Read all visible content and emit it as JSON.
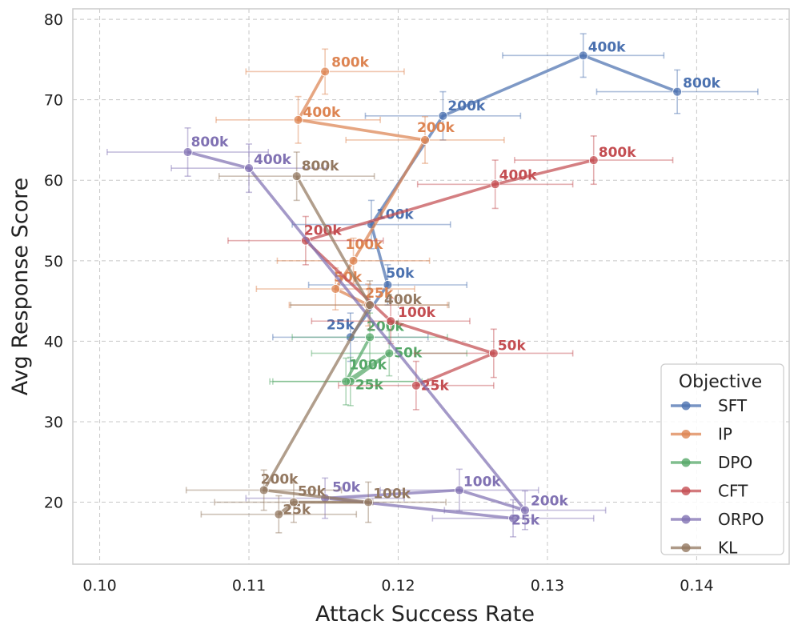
{
  "chart_data": {
    "type": "scatter",
    "xlabel": "Attack Success Rate",
    "ylabel": "Avg Response Score",
    "xlim": [
      0.0982,
      0.1462
    ],
    "ylim": [
      12.3,
      81.3
    ],
    "xticks": [
      0.1,
      0.11,
      0.12,
      0.13,
      0.14
    ],
    "xtick_labels": [
      "0.10",
      "0.11",
      "0.12",
      "0.13",
      "0.14"
    ],
    "yticks": [
      20,
      30,
      40,
      50,
      60,
      70,
      80
    ],
    "ytick_labels": [
      "20",
      "30",
      "40",
      "50",
      "60",
      "70",
      "80"
    ],
    "grid": true,
    "legend": {
      "title": "Objective",
      "placement": "lower-right"
    },
    "series": [
      {
        "name": "SFT",
        "color": "#4c72b0",
        "points": [
          {
            "label": "25k",
            "x": 0.1168,
            "y": 40.5,
            "xerr": 0.0052,
            "yerr": 3.0
          },
          {
            "label": "50k",
            "x": 0.1193,
            "y": 47.0,
            "xerr": 0.0053,
            "yerr": 2.5
          },
          {
            "label": "100k",
            "x": 0.1182,
            "y": 54.5,
            "xerr": 0.0053,
            "yerr": 3.0
          },
          {
            "label": "200k",
            "x": 0.123,
            "y": 68.0,
            "xerr": 0.0052,
            "yerr": 3.0
          },
          {
            "label": "400k",
            "x": 0.1324,
            "y": 75.5,
            "xerr": 0.0054,
            "yerr": 2.7
          },
          {
            "label": "800k",
            "x": 0.1387,
            "y": 71.0,
            "xerr": 0.0054,
            "yerr": 2.7
          }
        ]
      },
      {
        "name": "IP",
        "color": "#dd8452",
        "points": [
          {
            "label": "25k",
            "x": 0.118,
            "y": 44.5,
            "xerr": 0.0053,
            "yerr": 2.6
          },
          {
            "label": "50k",
            "x": 0.1158,
            "y": 46.5,
            "xerr": 0.0053,
            "yerr": 2.6
          },
          {
            "label": "100k",
            "x": 0.117,
            "y": 50.0,
            "xerr": 0.0051,
            "yerr": 2.8
          },
          {
            "label": "200k",
            "x": 0.1218,
            "y": 65.0,
            "xerr": 0.0053,
            "yerr": 2.9
          },
          {
            "label": "400k",
            "x": 0.1133,
            "y": 67.5,
            "xerr": 0.0055,
            "yerr": 2.9
          },
          {
            "label": "800k",
            "x": 0.1151,
            "y": 73.5,
            "xerr": 0.0053,
            "yerr": 2.8
          }
        ]
      },
      {
        "name": "DPO",
        "color": "#55a868",
        "points": [
          {
            "label": "25k",
            "x": 0.1168,
            "y": 35.0,
            "xerr": 0.0052,
            "yerr": 3.0
          },
          {
            "label": "50k",
            "x": 0.1194,
            "y": 38.5,
            "xerr": 0.0052,
            "yerr": 2.8
          },
          {
            "label": "100k",
            "x": 0.1165,
            "y": 35.0,
            "xerr": 0.0051,
            "yerr": 2.9
          },
          {
            "label": "200k",
            "x": 0.1181,
            "y": 40.5,
            "xerr": 0.0052,
            "yerr": 3.0
          }
        ]
      },
      {
        "name": "CFT",
        "color": "#c44e52",
        "points": [
          {
            "label": "25k",
            "x": 0.1212,
            "y": 34.5,
            "xerr": 0.0052,
            "yerr": 3.0
          },
          {
            "label": "50k",
            "x": 0.1264,
            "y": 38.5,
            "xerr": 0.0053,
            "yerr": 3.0
          },
          {
            "label": "100k",
            "x": 0.1195,
            "y": 42.5,
            "xerr": 0.0053,
            "yerr": 2.8
          },
          {
            "label": "200k",
            "x": 0.1138,
            "y": 52.5,
            "xerr": 0.0052,
            "yerr": 3.0
          },
          {
            "label": "400k",
            "x": 0.1265,
            "y": 59.5,
            "xerr": 0.0052,
            "yerr": 3.0
          },
          {
            "label": "800k",
            "x": 0.1331,
            "y": 62.5,
            "xerr": 0.0053,
            "yerr": 3.0
          }
        ]
      },
      {
        "name": "ORPO",
        "color": "#8172b3",
        "points": [
          {
            "label": "25k",
            "x": 0.1277,
            "y": 18.0,
            "xerr": 0.0054,
            "yerr": 2.3
          },
          {
            "label": "50k",
            "x": 0.1151,
            "y": 20.5,
            "xerr": 0.0053,
            "yerr": 2.5
          },
          {
            "label": "100k",
            "x": 0.1241,
            "y": 21.5,
            "xerr": 0.0053,
            "yerr": 2.6
          },
          {
            "label": "200k",
            "x": 0.1285,
            "y": 19.0,
            "xerr": 0.0054,
            "yerr": 2.4
          },
          {
            "label": "400k",
            "x": 0.11,
            "y": 61.5,
            "xerr": 0.0052,
            "yerr": 3.0
          },
          {
            "label": "800k",
            "x": 0.1059,
            "y": 63.5,
            "xerr": 0.0054,
            "yerr": 3.0
          }
        ]
      },
      {
        "name": "KL",
        "color": "#937860",
        "points": [
          {
            "label": "25k",
            "x": 0.112,
            "y": 18.5,
            "xerr": 0.0052,
            "yerr": 2.3
          },
          {
            "label": "50k",
            "x": 0.113,
            "y": 20.0,
            "xerr": 0.0053,
            "yerr": 2.5
          },
          {
            "label": "100k",
            "x": 0.118,
            "y": 20.0,
            "xerr": 0.0052,
            "yerr": 2.5
          },
          {
            "label": "200k",
            "x": 0.111,
            "y": 21.5,
            "xerr": 0.0052,
            "yerr": 2.5
          },
          {
            "label": "400k",
            "x": 0.1181,
            "y": 44.5,
            "xerr": 0.0053,
            "yerr": 3.0
          },
          {
            "label": "800k",
            "x": 0.1132,
            "y": 60.5,
            "xerr": 0.0052,
            "yerr": 3.0
          }
        ]
      }
    ]
  }
}
